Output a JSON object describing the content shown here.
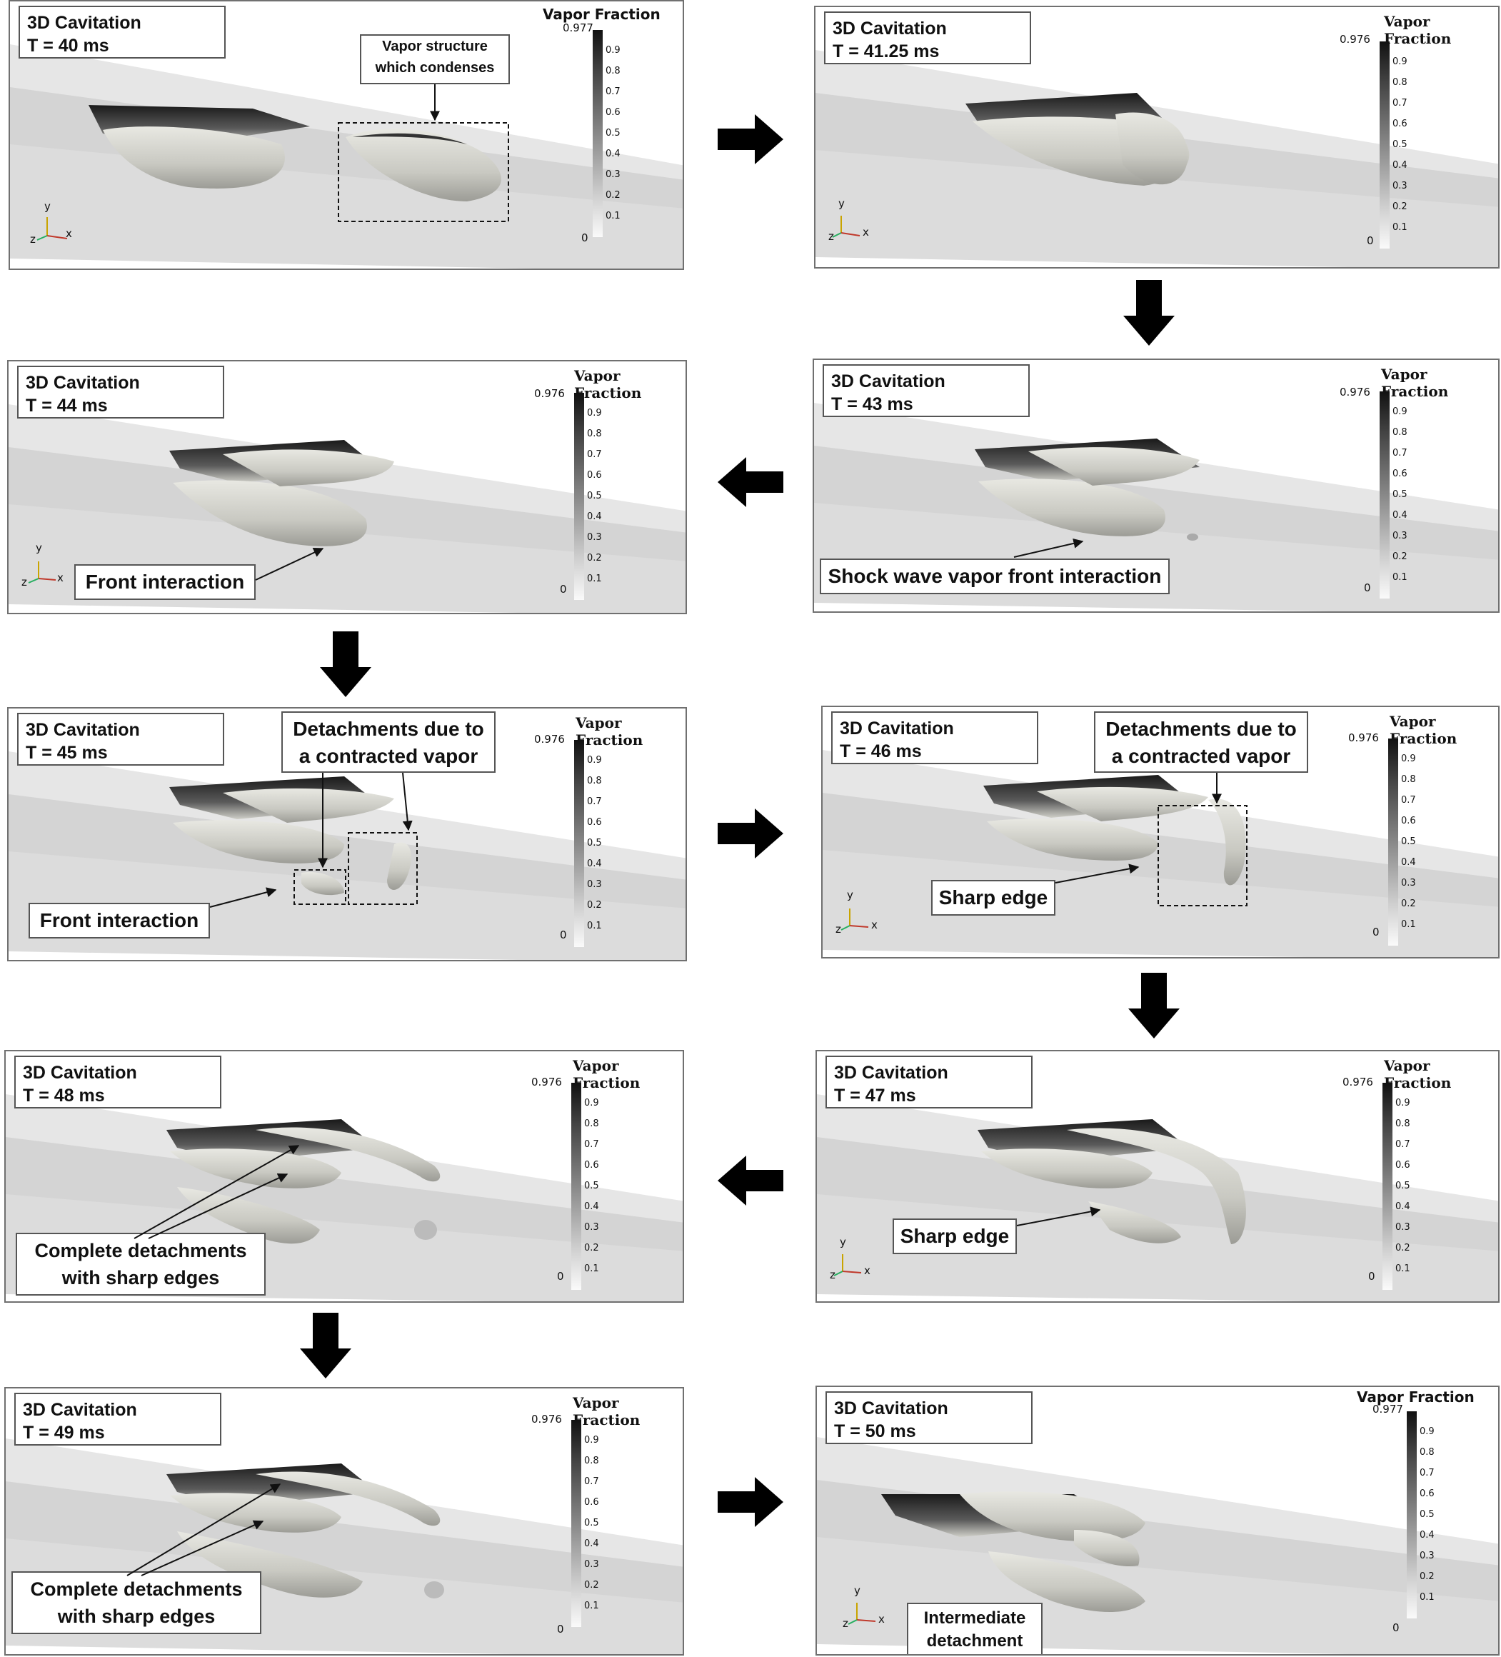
{
  "colorbar": {
    "title": "Vapor Fraction",
    "max_a": "0.977",
    "max_b": "0.976",
    "ticks": [
      "0.9",
      "0.8",
      "0.7",
      "0.6",
      "0.5",
      "0.4",
      "0.3",
      "0.2",
      "0.1"
    ],
    "min": "0"
  },
  "axes": {
    "y": "y",
    "x": "x",
    "z": "z"
  },
  "panels": [
    {
      "title": "3D Cavitation",
      "time": "T = 40 ms"
    },
    {
      "title": "3D Cavitation",
      "time": "T = 41.25 ms"
    },
    {
      "title": "3D Cavitation",
      "time": "T = 44 ms"
    },
    {
      "title": "3D Cavitation",
      "time": "T = 43 ms"
    },
    {
      "title": "3D Cavitation",
      "time": "T = 45 ms"
    },
    {
      "title": "3D Cavitation",
      "time": "T = 46 ms"
    },
    {
      "title": "3D Cavitation",
      "time": "T = 48 ms"
    },
    {
      "title": "3D Cavitation",
      "time": "T = 47 ms"
    },
    {
      "title": "3D Cavitation",
      "time": "T = 49 ms"
    },
    {
      "title": "3D Cavitation",
      "time": "T = 50 ms"
    }
  ],
  "callouts": {
    "vapor_structure_l1": "Vapor structure",
    "vapor_structure_l2": "which condenses",
    "front_interaction": "Front interaction",
    "shock_wave": "Shock wave vapor front interaction",
    "detach_l1": "Detachments due to",
    "detach_l2": "a contracted vapor",
    "sharp_edge": "Sharp edge",
    "complete_l1": "Complete detachments",
    "complete_l2": "with sharp edges",
    "intermediate_l1": "Intermediate",
    "intermediate_l2": "detachment"
  }
}
